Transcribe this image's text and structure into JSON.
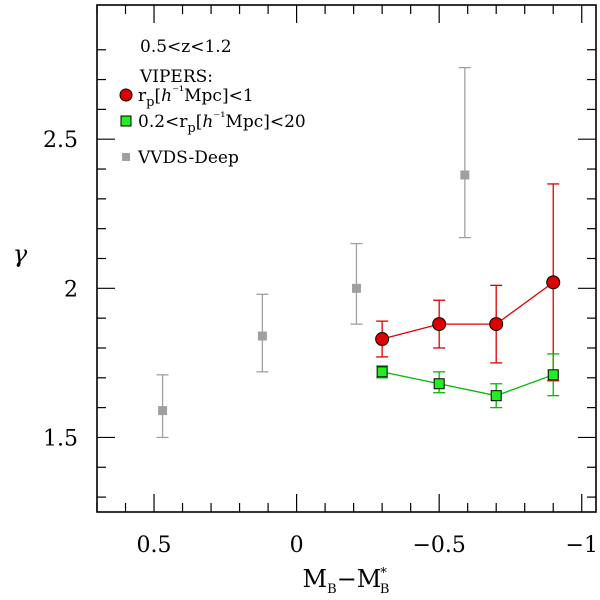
{
  "chart_data": {
    "type": "scatter",
    "title": "",
    "xlabel": "M_B − M*_B",
    "ylabel": "γ",
    "x_axis_inverted": true,
    "xlim": [
      0.7,
      -1.05
    ],
    "ylim": [
      1.25,
      2.95
    ],
    "x_ticks": [
      0.5,
      0,
      -0.5,
      -1
    ],
    "x_tick_labels": [
      "0.5",
      "0",
      "−0.5",
      "−1"
    ],
    "y_ticks": [
      1.5,
      2,
      2.5
    ],
    "y_tick_labels": [
      "1.5",
      "2",
      "2.5"
    ],
    "annotation": "0.5<z<1.2",
    "legend": {
      "heading": "VIPERS:",
      "position": "top-left",
      "entries": [
        {
          "series": "vipers_small",
          "label": "r_p[h⁻¹Mpc]<1",
          "label_parts": [
            "r",
            "p",
            "[",
            "h",
            "⁻¹",
            "Mpc]<1"
          ]
        },
        {
          "series": "vipers_large",
          "label": "0.2<r_p[h⁻¹Mpc]<20",
          "label_parts": [
            "0.2<r",
            "p",
            "[",
            "h",
            "⁻¹",
            "Mpc]<20"
          ]
        },
        {
          "series": "vvds",
          "label": "VVDS-Deep",
          "label_parts": [
            "VVDS-Deep"
          ]
        }
      ]
    },
    "series": [
      {
        "id": "vvds",
        "name": "VVDS-Deep",
        "marker": "square",
        "color": "#a0a0a0",
        "connected": false,
        "x": [
          0.47,
          0.12,
          -0.21,
          -0.59
        ],
        "y": [
          1.59,
          1.84,
          2.0,
          2.38
        ],
        "y_err_low": [
          1.5,
          1.72,
          1.88,
          2.17
        ],
        "y_err_high": [
          1.71,
          1.98,
          2.15,
          2.74
        ]
      },
      {
        "id": "vipers_small",
        "name": "VIPERS r_p<1",
        "marker": "circle",
        "color": "#dd0000",
        "fill": "#dd0000",
        "connected": true,
        "x": [
          -0.3,
          -0.5,
          -0.7,
          -0.9
        ],
        "y": [
          1.83,
          1.88,
          1.88,
          2.02
        ],
        "y_err_low": [
          1.77,
          1.8,
          1.75,
          1.69
        ],
        "y_err_high": [
          1.89,
          1.96,
          2.01,
          2.35
        ]
      },
      {
        "id": "vipers_large",
        "name": "VIPERS 0.2<r_p<20",
        "marker": "square",
        "color": "#00bb00",
        "fill": "#22ee22",
        "connected": true,
        "x": [
          -0.3,
          -0.5,
          -0.7,
          -0.9
        ],
        "y": [
          1.72,
          1.68,
          1.64,
          1.71
        ],
        "y_err_low": [
          1.7,
          1.65,
          1.6,
          1.64
        ],
        "y_err_high": [
          1.74,
          1.72,
          1.68,
          1.78
        ]
      }
    ]
  }
}
